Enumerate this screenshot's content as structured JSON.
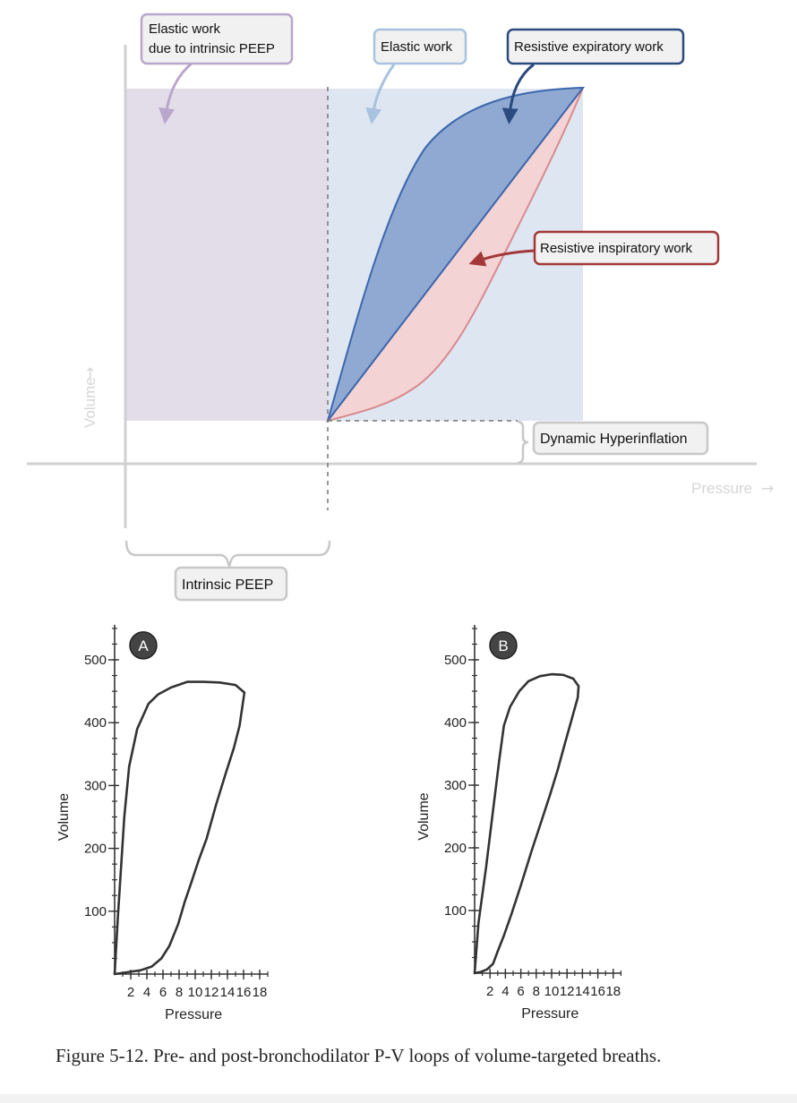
{
  "diagram": {
    "labels": {
      "elastic_work_peep_line1": "Elastic work",
      "elastic_work_peep_line2": "due to intrinsic PEEP",
      "elastic_work": "Elastic work",
      "resistive_expiratory_work": "Resistive expiratory work",
      "resistive_inspiratory_work": "Resistive inspiratory work",
      "dynamic_hyperinflation": "Dynamic Hyperinflation",
      "intrinsic_peep": "Intrinsic PEEP",
      "x_axis": "Pressure",
      "y_axis": "Volume"
    },
    "colors": {
      "peep_region": "#e3dce9",
      "elastic_region": "#dde6f1",
      "expiratory_region": "#8fa9d2",
      "inspiratory_region": "#f3d3d4",
      "peep_label_border": "#b9a6cc",
      "elastic_label_border": "#a8c2df",
      "expiratory_label_border": "#2b4a7e",
      "inspiratory_label_border": "#a3383a"
    }
  },
  "chart_data": [
    {
      "type": "line",
      "badge": "A",
      "xlabel": "Pressure",
      "ylabel": "Volume",
      "xlim": [
        0,
        19
      ],
      "ylim": [
        0,
        550
      ],
      "x_ticks": [
        2,
        4,
        6,
        8,
        10,
        12,
        14,
        16,
        18
      ],
      "y_ticks": [
        100,
        200,
        300,
        400,
        500
      ],
      "loop": {
        "x": [
          0,
          0.4,
          1.2,
          1.8,
          2.8,
          4.2,
          5.4,
          7.0,
          9.0,
          11.0,
          13.0,
          15.0,
          16.1,
          15.9,
          15.5,
          14.8,
          13.8,
          12.6,
          11.4,
          10.4,
          9.5,
          8.7,
          7.9,
          6.8,
          5.8,
          4.6,
          3.2,
          1.6,
          0
        ],
        "y": [
          0,
          90,
          250,
          330,
          390,
          430,
          445,
          456,
          465,
          465,
          464,
          460,
          448,
          430,
          395,
          360,
          320,
          270,
          215,
          180,
          145,
          115,
          80,
          45,
          25,
          12,
          6,
          3,
          0
        ]
      }
    },
    {
      "type": "line",
      "badge": "B",
      "xlabel": "Pressure",
      "ylabel": "Volume",
      "xlim": [
        0,
        19
      ],
      "ylim": [
        0,
        550
      ],
      "x_ticks": [
        2,
        4,
        6,
        8,
        10,
        12,
        14,
        16,
        18
      ],
      "y_ticks": [
        100,
        200,
        300,
        400,
        500
      ],
      "loop": {
        "x": [
          0,
          0.5,
          1.5,
          2.4,
          3.2,
          3.8,
          4.6,
          5.8,
          7.0,
          8.5,
          10.0,
          11.5,
          12.8,
          13.5,
          13.4,
          12.6,
          11.8,
          10.8,
          9.8,
          8.6,
          7.4,
          6.0,
          4.8,
          3.8,
          3.0,
          2.4,
          1.6,
          0.8,
          0
        ],
        "y": [
          0,
          80,
          170,
          260,
          340,
          395,
          425,
          450,
          466,
          474,
          477,
          476,
          470,
          458,
          440,
          405,
          370,
          325,
          285,
          240,
          195,
          140,
          95,
          60,
          35,
          15,
          6,
          2,
          0
        ]
      }
    }
  ],
  "caption": "Figure 5-12. Pre- and post-bronchodilator P-V loops of volume-targeted breaths."
}
